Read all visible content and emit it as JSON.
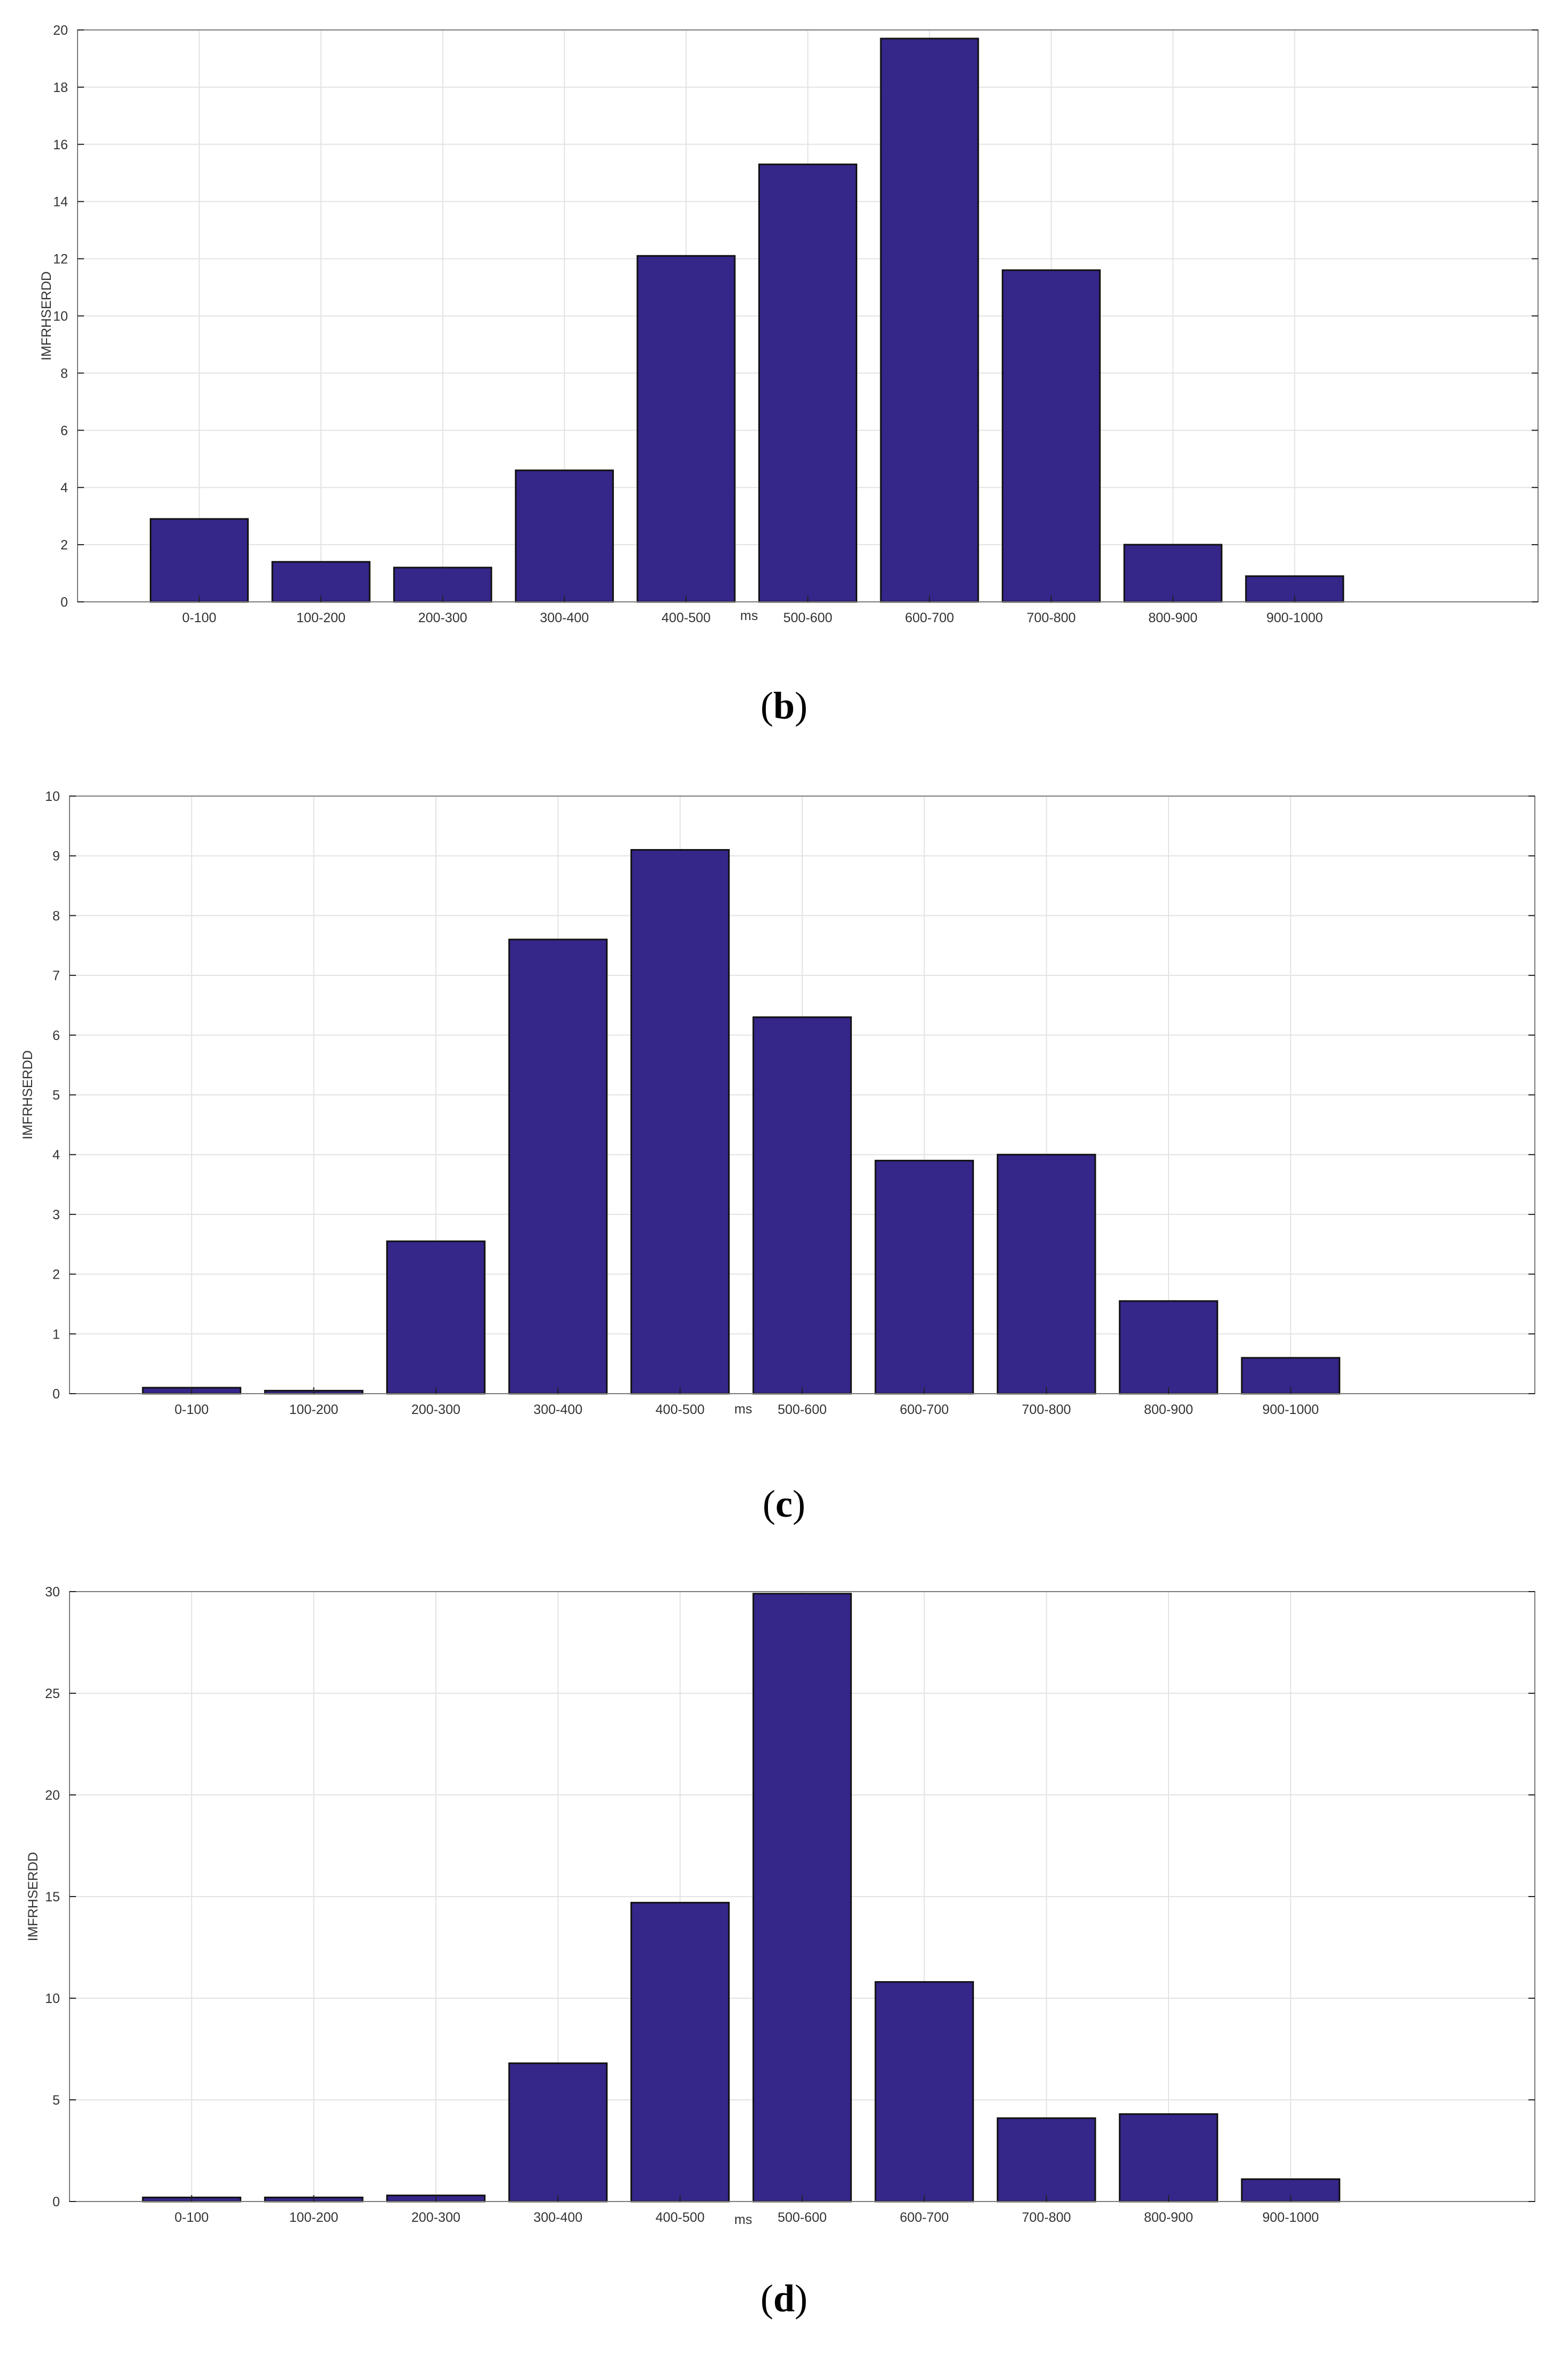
{
  "colors": {
    "bar_fill": "#35268a",
    "bar_stroke": "#111111",
    "grid": "#e3e3e3",
    "axis": "#7a7a7a"
  },
  "chart_data": [
    {
      "type": "bar",
      "panel_label": "b",
      "categories": [
        "0-100",
        "100-200",
        "200-300",
        "300-400",
        "400-500",
        "500-600",
        "600-700",
        "700-800",
        "800-900",
        "900-1000"
      ],
      "values": [
        2.9,
        1.4,
        1.2,
        4.6,
        12.1,
        15.3,
        19.7,
        11.6,
        2.0,
        0.9
      ],
      "xlim": [
        0,
        12
      ],
      "ylim": [
        0,
        20
      ],
      "yticks": [
        0,
        2,
        4,
        6,
        8,
        10,
        12,
        14,
        16,
        18,
        20
      ],
      "title": "",
      "xlabel": "ms",
      "ylabel": "IMFRHSERDD",
      "grid": true
    },
    {
      "type": "bar",
      "panel_label": "c",
      "categories": [
        "0-100",
        "100-200",
        "200-300",
        "300-400",
        "400-500",
        "500-600",
        "600-700",
        "700-800",
        "800-900",
        "900-1000"
      ],
      "values": [
        0.1,
        0.05,
        2.55,
        7.6,
        9.1,
        6.3,
        3.9,
        4.0,
        1.55,
        0.6
      ],
      "xlim": [
        0,
        12
      ],
      "ylim": [
        0,
        10
      ],
      "yticks": [
        0,
        1,
        2,
        3,
        4,
        5,
        6,
        7,
        8,
        9,
        10
      ],
      "title": "",
      "xlabel": "ms",
      "ylabel": "IMFRHSERDD",
      "grid": true
    },
    {
      "type": "bar",
      "panel_label": "d",
      "categories": [
        "0-100",
        "100-200",
        "200-300",
        "300-400",
        "400-500",
        "500-600",
        "600-700",
        "700-800",
        "800-900",
        "900-1000"
      ],
      "values": [
        0.2,
        0.2,
        0.3,
        6.8,
        14.7,
        29.9,
        10.8,
        4.1,
        4.3,
        1.1
      ],
      "xlim": [
        0,
        12
      ],
      "ylim": [
        0,
        30
      ],
      "yticks": [
        0,
        5,
        10,
        15,
        20,
        25,
        30
      ],
      "title": "",
      "xlabel": "ms",
      "ylabel": "IMFRHSERDD",
      "grid": true
    }
  ]
}
